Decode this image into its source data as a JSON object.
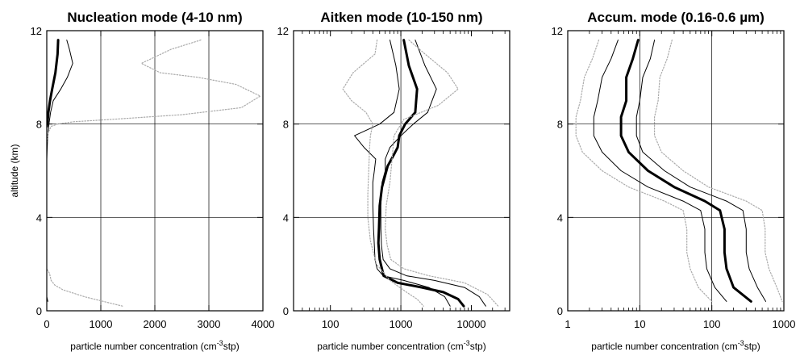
{
  "chart_data": [
    {
      "type": "line",
      "title": "Nucleation mode (4-10 nm)",
      "xlabel": "particle number concentration (cm",
      "xlabel_sup": "-3",
      "xlabel_end": "stp)",
      "ylabel": "altitude (km)",
      "xscale": "linear",
      "xlim": [
        0,
        4000
      ],
      "ylim": [
        0,
        12
      ],
      "xticks": [
        0,
        1000,
        2000,
        3000,
        4000
      ],
      "xtick_labels": [
        "0",
        "1000",
        "2000",
        "3000",
        "4000"
      ],
      "yticks": [
        0,
        4,
        8,
        12
      ],
      "ytick_labels": [
        "0",
        "4",
        "8",
        "12"
      ],
      "grid": true,
      "series": [
        {
          "style": "median",
          "color": "#000000",
          "x": [
            210,
            200,
            160,
            100,
            60,
            30,
            15,
            0
          ],
          "y": [
            11.6,
            11,
            10.2,
            9.5,
            9,
            8.5,
            8.1,
            7.9
          ]
        },
        {
          "style": "quartile",
          "color": "#000000",
          "x": [
            370,
            420,
            480,
            380,
            260,
            120,
            70,
            40,
            15,
            0
          ],
          "y": [
            11.6,
            11.2,
            10.6,
            10,
            9.5,
            9,
            8.5,
            8,
            7.4,
            6.5
          ]
        },
        {
          "style": "quartile",
          "color": "#000000",
          "x": [
            20,
            0
          ],
          "y": [
            0.4,
            0.6
          ]
        },
        {
          "style": "percentile",
          "color": "#aaaaaa",
          "x": [
            2850,
            2300,
            1750,
            2100,
            2800,
            3500,
            3950,
            3600,
            2500,
            1200,
            500,
            200,
            80,
            20,
            0
          ],
          "y": [
            11.6,
            11.2,
            10.6,
            10.2,
            10,
            9.7,
            9.2,
            8.7,
            8.4,
            8.2,
            8.1,
            8,
            7.9,
            7.6,
            7.2
          ]
        },
        {
          "style": "percentile",
          "color": "#aaaaaa",
          "x": [
            1400,
            700,
            300,
            150,
            80,
            50,
            0
          ],
          "y": [
            0.2,
            0.6,
            0.9,
            1.1,
            1.3,
            1.6,
            1.8
          ]
        }
      ]
    },
    {
      "type": "line",
      "title": "Aitken mode (10-150 nm)",
      "xlabel": "particle number concentration (cm",
      "xlabel_sup": "-3",
      "xlabel_end": "stp)",
      "xscale": "log",
      "xlim": [
        30,
        35000
      ],
      "ylim": [
        0,
        12
      ],
      "xticks": [
        100,
        1000,
        10000
      ],
      "xtick_labels": [
        "100",
        "1000",
        "10000"
      ],
      "yticks": [
        0,
        4,
        8,
        12
      ],
      "ytick_labels": [
        "0",
        "4",
        "8",
        "12"
      ],
      "grid": true,
      "series": [
        {
          "style": "median",
          "color": "#000000",
          "x": [
            1100,
            1300,
            1700,
            1600,
            1150,
            950,
            900,
            800,
            650,
            540,
            500,
            490,
            480,
            500,
            570,
            900,
            2000,
            4000,
            6500,
            7800
          ],
          "y": [
            11.6,
            10.5,
            9.5,
            8.5,
            8,
            7.5,
            7,
            6.7,
            6.2,
            5.3,
            4.5,
            3.6,
            2.9,
            2.2,
            1.5,
            1.2,
            1,
            0.8,
            0.5,
            0.2
          ]
        },
        {
          "style": "quartile",
          "color": "#000000",
          "x": [
            1600,
            2200,
            3200,
            2400,
            1500,
            1000,
            700,
            600,
            600,
            540,
            520,
            520,
            530,
            560,
            700,
            1200,
            3000,
            8000,
            13000,
            16000
          ],
          "y": [
            11.6,
            10.5,
            9.5,
            8.5,
            8,
            7.5,
            7,
            6.5,
            6,
            5.5,
            4.5,
            3.5,
            2.8,
            2.2,
            1.8,
            1.5,
            1.3,
            1,
            0.6,
            0.2
          ]
        },
        {
          "style": "quartile",
          "color": "#000000",
          "x": [
            700,
            850,
            950,
            800,
            500,
            220,
            300,
            440,
            420,
            400,
            400,
            410,
            420,
            430,
            460,
            560,
            1100,
            2500,
            4200,
            5000
          ],
          "y": [
            11.6,
            10.5,
            9.5,
            8.5,
            8,
            7.5,
            7,
            6.5,
            6,
            5.5,
            4.5,
            3.5,
            2.8,
            2.2,
            1.8,
            1.5,
            1.3,
            1,
            0.6,
            0.2
          ]
        },
        {
          "style": "percentile",
          "color": "#aaaaaa",
          "x": [
            1300,
            2200,
            4600,
            6500,
            3400,
            1100,
            800,
            750,
            700,
            620,
            600,
            640,
            720,
            1100,
            2500,
            8000,
            17000,
            24000
          ],
          "y": [
            11.6,
            11,
            10.2,
            9.5,
            8.8,
            8.2,
            7.5,
            6.5,
            5.5,
            4.5,
            3.5,
            2.8,
            2.2,
            1.8,
            1.5,
            1.2,
            0.7,
            0.2
          ]
        },
        {
          "style": "percentile",
          "color": "#aaaaaa",
          "x": [
            460,
            430,
            210,
            150,
            200,
            320,
            400,
            370,
            360,
            350,
            340,
            340,
            370,
            450,
            700,
            1200,
            1700,
            2100
          ],
          "y": [
            11.6,
            11,
            10.2,
            9.5,
            9,
            8.5,
            8,
            7.5,
            7,
            6,
            5,
            4,
            3,
            2,
            1.3,
            0.8,
            0.5,
            0.2
          ]
        }
      ]
    },
    {
      "type": "line",
      "title": "Accum. mode (0.16-0.6 µm)",
      "xlabel": "particle number concentration (cm",
      "xlabel_sup": "-3",
      "xlabel_end": "stp)",
      "xscale": "log",
      "xlim": [
        1,
        1000
      ],
      "ylim": [
        0,
        12
      ],
      "xticks": [
        1,
        10,
        100,
        1000
      ],
      "xtick_labels": [
        "1",
        "10",
        "100",
        "1000"
      ],
      "yticks": [
        0,
        4,
        8,
        12
      ],
      "ytick_labels": [
        "0",
        "4",
        "8",
        "12"
      ],
      "grid": true,
      "series": [
        {
          "style": "median",
          "color": "#000000",
          "x": [
            9.5,
            8,
            6.5,
            6.5,
            5.5,
            5.5,
            7,
            13,
            30,
            80,
            130,
            150,
            150,
            160,
            200,
            350
          ],
          "y": [
            11.6,
            10.8,
            10,
            9,
            8.3,
            7.5,
            6.8,
            6,
            5.3,
            4.7,
            4.3,
            3.5,
            2.5,
            1.8,
            1,
            0.4
          ]
        },
        {
          "style": "quartile",
          "color": "#000000",
          "x": [
            16,
            14,
            11,
            10,
            9,
            9,
            11,
            22,
            50,
            160,
            270,
            300,
            300,
            330,
            430,
            560
          ],
          "y": [
            11.6,
            10.8,
            10,
            9,
            8.3,
            7.5,
            6.8,
            6,
            5.3,
            4.7,
            4.3,
            3.5,
            2.5,
            1.8,
            1,
            0.4
          ]
        },
        {
          "style": "quartile",
          "color": "#000000",
          "x": [
            5,
            4,
            3,
            2.6,
            2.3,
            2.3,
            3,
            5.5,
            13,
            40,
            70,
            80,
            80,
            85,
            110,
            160
          ],
          "y": [
            11.6,
            10.8,
            10,
            9,
            8.3,
            7.5,
            6.8,
            6,
            5.3,
            4.7,
            4.3,
            3.5,
            2.5,
            1.8,
            1,
            0.4
          ]
        },
        {
          "style": "percentile",
          "color": "#aaaaaa",
          "x": [
            28,
            24,
            19,
            18,
            16,
            16,
            20,
            40,
            90,
            300,
            500,
            550,
            550,
            620,
            800,
            950
          ],
          "y": [
            11.6,
            10.8,
            10,
            9,
            8.3,
            7.5,
            6.8,
            6,
            5.3,
            4.7,
            4.3,
            3.5,
            2.5,
            1.8,
            1,
            0.4
          ]
        },
        {
          "style": "percentile",
          "color": "#aaaaaa",
          "x": [
            2.7,
            2.2,
            1.7,
            1.5,
            1.3,
            1.3,
            1.6,
            3,
            7,
            22,
            40,
            45,
            45,
            50,
            65,
            100
          ],
          "y": [
            11.6,
            10.8,
            10,
            9,
            8.3,
            7.5,
            6.8,
            6,
            5.3,
            4.7,
            4.3,
            3.5,
            2.5,
            1.8,
            1,
            0.4
          ]
        }
      ]
    }
  ]
}
